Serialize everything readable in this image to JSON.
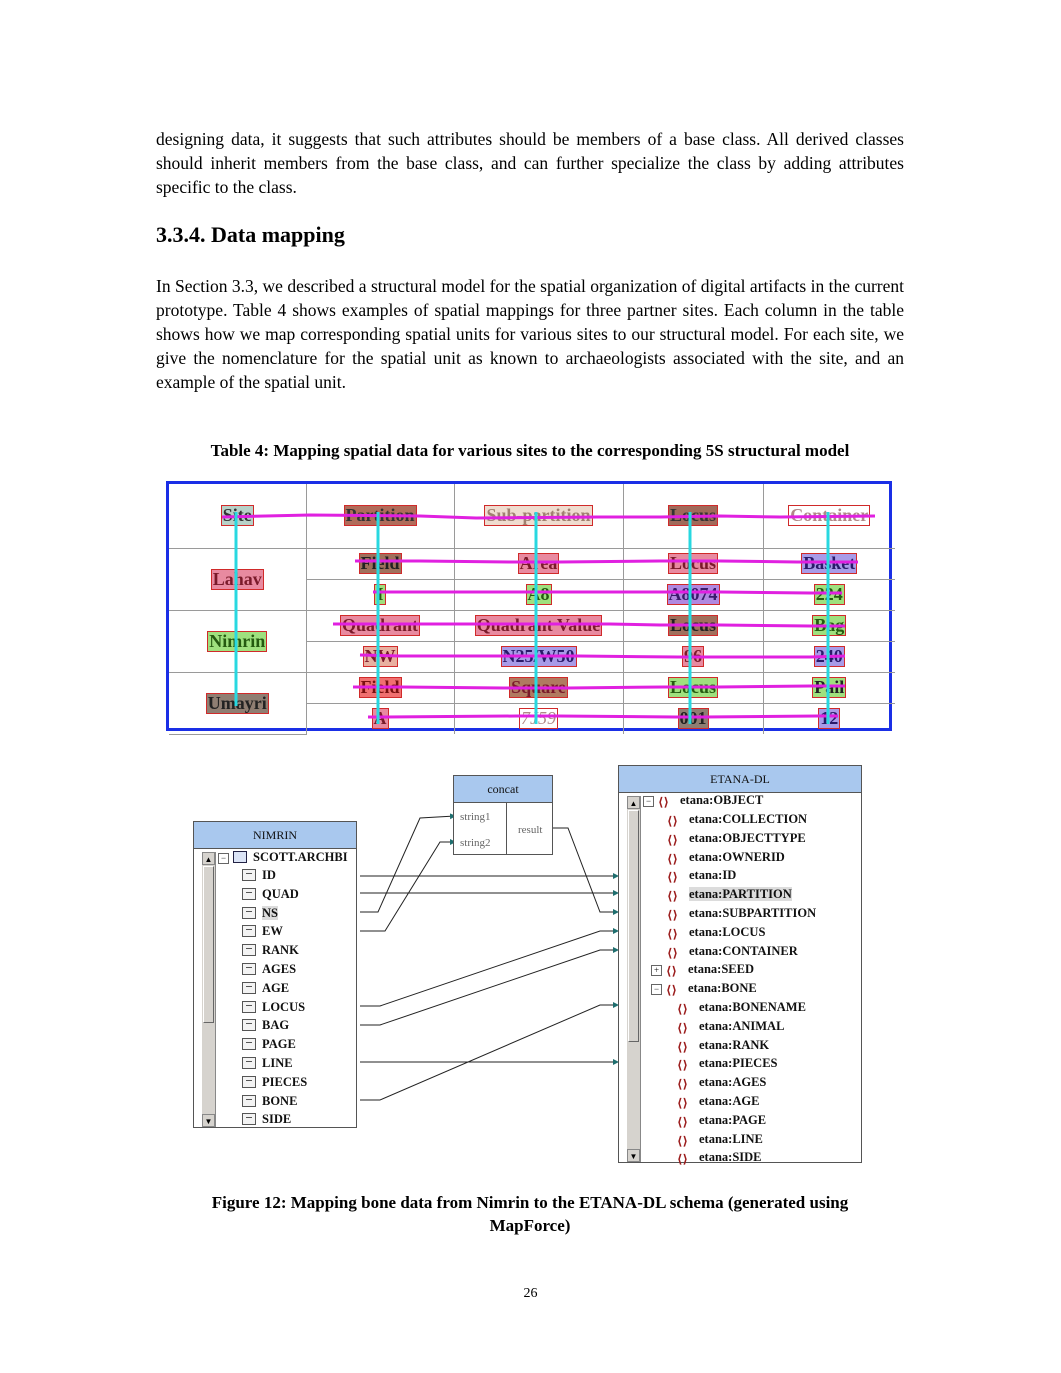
{
  "paragraph1": "designing data, it suggests that such attributes should be members of a base class. All derived classes should inherit members from the base class, and can further specialize the class by adding attributes specific to the class.",
  "section_heading": "3.3.4. Data mapping",
  "paragraph2": "In Section 3.3, we described a structural model for the spatial organization of digital artifacts in the current prototype. Table 4 shows examples of spatial mappings for three partner sites. Each column in the table shows how we map corresponding spatial units for various sites to our structural model. For each site, we give the nomenclature for the spatial unit as known to archaeologists associated with the site, and an example of the spatial unit.",
  "table_caption": "Table 4: Mapping spatial data for various sites to the corresponding 5S structural model",
  "table": {
    "header": [
      "Site",
      "Partition",
      "Sub-partition",
      "Locus",
      "Container"
    ],
    "sites": [
      {
        "name": "Lahav",
        "nomenclature": [
          "Field",
          "Area",
          "Locus",
          "Basket"
        ],
        "example": [
          "I",
          "A8",
          "A8074",
          "224"
        ]
      },
      {
        "name": "Nimrin",
        "nomenclature": [
          "Quadrant",
          "Quadrant Value",
          "Locus",
          "Bag"
        ],
        "example": [
          "NW",
          "N25/W50",
          "96",
          "240"
        ]
      },
      {
        "name": "Umayri",
        "nomenclature": [
          "Field",
          "Square",
          "Locus",
          "Pail"
        ],
        "example": [
          "A",
          "7J59",
          "001",
          "12"
        ]
      }
    ],
    "colors": {
      "site": "#b7d1c8",
      "partition": "#b06c5a",
      "subpartition": "#e8d2c4",
      "locus": "#a06a5a",
      "container": "#ffffff",
      "lahav": "#e88aa0",
      "nimrin": "#9fe07e",
      "umayri": "#8f7e72"
    }
  },
  "diagram": {
    "nimrin": {
      "title": "NIMRIN",
      "root": "SCOTT.ARCHBI",
      "fields": [
        "ID",
        "QUAD",
        "NS",
        "EW",
        "RANK",
        "AGES",
        "AGE",
        "LOCUS",
        "BAG",
        "PAGE",
        "LINE",
        "PIECES",
        "BONE",
        "SIDE"
      ]
    },
    "concat": {
      "title": "concat",
      "inputs": [
        "string1",
        "string2"
      ],
      "output": "result"
    },
    "etana": {
      "title": "ETANA-DL",
      "root": "etana:OBJECT",
      "items": [
        "etana:COLLECTION",
        "etana:OBJECTTYPE",
        "etana:OWNERID",
        "etana:ID",
        "etana:PARTITION",
        "etana:SUBPARTITION",
        "etana:LOCUS",
        "etana:CONTAINER",
        "etana:SEED",
        "etana:BONE"
      ],
      "bone_children": [
        "etana:BONENAME",
        "etana:ANIMAL",
        "etana:RANK",
        "etana:PIECES",
        "etana:AGES",
        "etana:AGE",
        "etana:PAGE",
        "etana:LINE",
        "etana:SIDE"
      ]
    }
  },
  "figure_caption_line1": "Figure 12: Mapping bone data from Nimrin to the ETANA-DL schema (generated using",
  "figure_caption_line2": "MapForce)",
  "page_number": "26"
}
